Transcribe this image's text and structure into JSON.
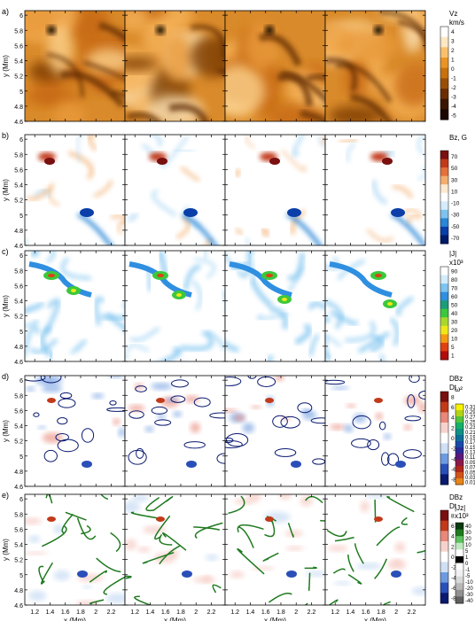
{
  "figure": {
    "x_axis": {
      "label": "x (Mm)",
      "ticks": [
        "1.2",
        "1.4",
        "1.6",
        "1.8",
        "2",
        "2.2"
      ],
      "tick_values": [
        1.2,
        1.4,
        1.6,
        1.8,
        2.0,
        2.2
      ],
      "range": [
        1.07,
        2.38
      ]
    },
    "y_axis": {
      "label": "y (Mm)",
      "ticks": [
        "6",
        "5.8",
        "5.6",
        "5.4",
        "5.2",
        "5",
        "4.8",
        "4.6"
      ],
      "tick_values": [
        6.0,
        5.8,
        5.6,
        5.4,
        5.2,
        5.0,
        4.8,
        4.6
      ],
      "range": [
        4.6,
        6.06
      ]
    },
    "rows": [
      {
        "letter": "a)",
        "colorbar": {
          "title_lines": [
            "Vz",
            "km/s"
          ],
          "ticks": [
            "4",
            "3",
            "2",
            "1",
            "0",
            "-1",
            "-2",
            "-3",
            "-4",
            "-5"
          ],
          "colors": [
            "#ffffff",
            "#fde8c2",
            "#f9c06b",
            "#ea9424",
            "#c8720e",
            "#9a4f07",
            "#6a2e02",
            "#3a1500",
            "#1a0700"
          ]
        }
      },
      {
        "letter": "b)",
        "colorbar": {
          "title_lines": [
            "Bz, G"
          ],
          "ticks": [
            "70",
            "50",
            "30",
            "10",
            "-10",
            "-30",
            "-50",
            "-70"
          ],
          "colors": [
            "#7a0f0f",
            "#c23a1a",
            "#e4703a",
            "#f3ae6e",
            "#fde9d0",
            "#ffffff",
            "#d6ecfb",
            "#7fc2ee",
            "#2a86d6",
            "#0a3ea8",
            "#001a6a"
          ]
        }
      },
      {
        "letter": "c)",
        "colorbar": {
          "title_lines": [
            "|J|",
            "x10³"
          ],
          "ticks": [
            "90",
            "80",
            "70",
            "60",
            "50",
            "40",
            "30",
            "20",
            "10",
            "5",
            "1"
          ],
          "colors": [
            "#ffffff",
            "#d2ecfb",
            "#7fc4f0",
            "#2f8fe0",
            "#1c9d7a",
            "#3cc83c",
            "#a8d92a",
            "#f0e816",
            "#f39a14",
            "#e04012",
            "#b00c0c"
          ]
        }
      },
      {
        "letter": "d)",
        "colorbar": {
          "title_lines": [
            "DBz",
            "Dt"
          ],
          "ticks": [
            "8",
            "6",
            "4",
            "2",
            "0",
            "-2",
            "-4",
            "-6",
            "-8"
          ],
          "colors": [
            "#7a0f0f",
            "#c23a1a",
            "#e9887a",
            "#f7d2cc",
            "#ffffff",
            "#cfe0f5",
            "#6e9be0",
            "#2a4fb8",
            "#0a1a70"
          ]
        },
        "colorbar2": {
          "title_lines": [
            "ω²"
          ],
          "ticks": [
            "0.31",
            "0.29",
            "0.27",
            "0.25",
            "0.23",
            "0.21",
            "0.19",
            "0.17",
            "0.15",
            "0.13",
            "0.11",
            "0.09",
            "0.07",
            "0.05",
            "0.03",
            "0.01"
          ],
          "colors": [
            "#f7f200",
            "#b3d31a",
            "#56c33c",
            "#17b06a",
            "#109184",
            "#0f6e98",
            "#1a4aa8",
            "#2a2a98",
            "#5a1a7a",
            "#8a1a4a",
            "#b0281a",
            "#d0551a",
            "#e8861a"
          ]
        }
      },
      {
        "letter": "e)",
        "colorbar": {
          "title_lines": [
            "DBz",
            "Dt"
          ],
          "ticks": [
            "8",
            "6",
            "4",
            "2",
            "0",
            "-2",
            "-4",
            "-6",
            "-8"
          ],
          "colors": [
            "#7a0f0f",
            "#c23a1a",
            "#e9887a",
            "#f7d2cc",
            "#ffffff",
            "#cfe0f5",
            "#6e9be0",
            "#2a4fb8",
            "#0a1a70"
          ]
        },
        "colorbar2": {
          "title_lines": [
            "|Jz|",
            "x10³"
          ],
          "ticks": [
            "40",
            "30",
            "20",
            "10",
            "5",
            "1",
            "0",
            "-1",
            "-5",
            "-10",
            "-20",
            "-30",
            "-40"
          ],
          "colors": [
            "#0a3a10",
            "#1f7a1f",
            "#5fc05f",
            "#bfe8bf",
            "#ffffff",
            "#000000",
            "#ffffff",
            "#f0f0f0",
            "#d8d8d8",
            "#b8b8b8",
            "#909090",
            "#606060"
          ]
        }
      }
    ]
  }
}
